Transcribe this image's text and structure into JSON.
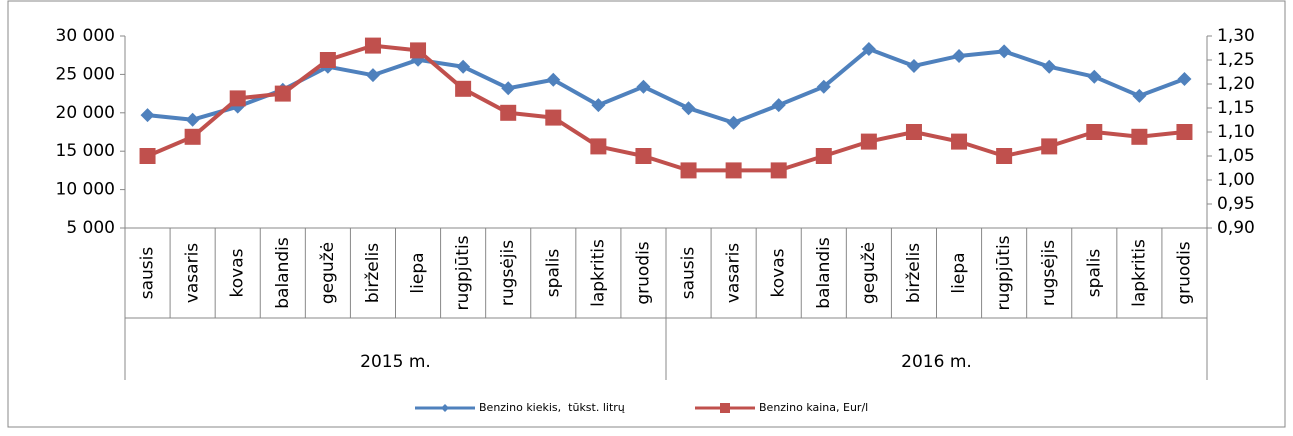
{
  "chart_data": {
    "type": "line",
    "categories": [
      "sausis",
      "vasaris",
      "kovas",
      "balandis",
      "gegužė",
      "birželis",
      "liepa",
      "rugpjūtis",
      "rugsėjis",
      "spalis",
      "lapkritis",
      "gruodis",
      "sausis",
      "vasaris",
      "kovas",
      "balandis",
      "gegužė",
      "birželis",
      "liepa",
      "rugpjūtis",
      "rugsėjis",
      "spalis",
      "lapkritis",
      "gruodis"
    ],
    "x_groups": [
      "2015 m.",
      "2016 m."
    ],
    "series": [
      {
        "name": "Benzino kiekis,  tūkst. litrų",
        "color": "#4f81bd",
        "marker": "diamond",
        "values": [
          19700,
          19100,
          20800,
          23000,
          26000,
          24900,
          26900,
          26000,
          23200,
          24300,
          21000,
          23400,
          20600,
          18700,
          21000,
          23400,
          28300,
          26100,
          27400,
          28000,
          26000,
          24700,
          22200,
          24400
        ]
      },
      {
        "name": "Benzino kaina, Eur/l",
        "color": "#c0504d",
        "marker": "square",
        "axis": "y2",
        "values": [
          1.05,
          1.09,
          1.17,
          1.18,
          1.25,
          1.28,
          1.27,
          1.19,
          1.14,
          1.13,
          1.07,
          1.05,
          1.02,
          1.02,
          1.02,
          1.05,
          1.08,
          1.1,
          1.08,
          1.05,
          1.07,
          1.1,
          1.09,
          1.1
        ]
      }
    ],
    "ylim": [
      5000,
      30000
    ],
    "yticks": [
      {
        "value": 5000,
        "label": "5 000"
      },
      {
        "value": 10000,
        "label": "10 000"
      },
      {
        "value": 15000,
        "label": "15 000"
      },
      {
        "value": 20000,
        "label": "20 000"
      },
      {
        "value": 25000,
        "label": "25 000"
      },
      {
        "value": 30000,
        "label": "30 000"
      }
    ],
    "y2lim": [
      0.9,
      1.3
    ],
    "y2ticks": [
      {
        "value": 0.9,
        "label": "0,90"
      },
      {
        "value": 0.95,
        "label": "0,95"
      },
      {
        "value": 1.0,
        "label": "1,00"
      },
      {
        "value": 1.05,
        "label": "1,05"
      },
      {
        "value": 1.1,
        "label": "1,10"
      },
      {
        "value": 1.15,
        "label": "1,15"
      },
      {
        "value": 1.2,
        "label": "1,20"
      },
      {
        "value": 1.25,
        "label": "1,25"
      },
      {
        "value": 1.3,
        "label": "1,30"
      }
    ],
    "legend": "bottom",
    "grid": false
  }
}
